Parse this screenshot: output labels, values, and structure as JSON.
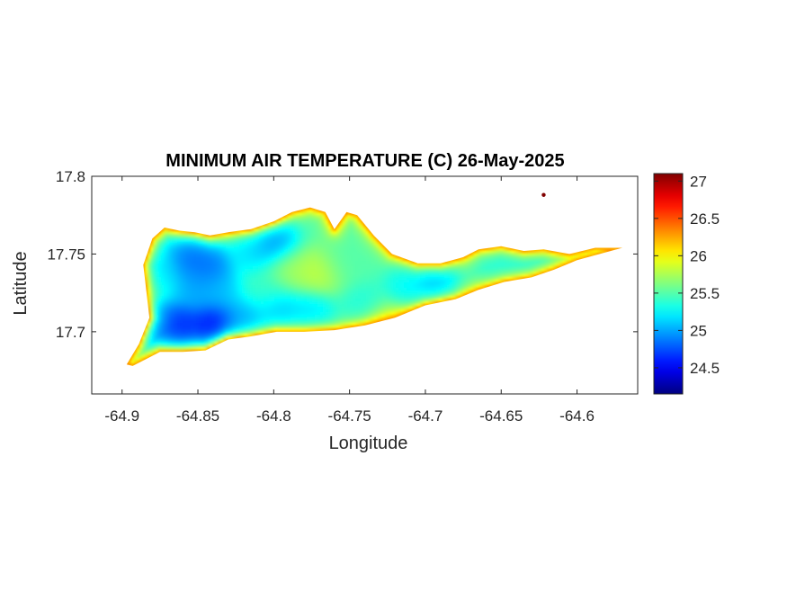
{
  "chart_data": {
    "type": "heatmap",
    "title": "MINIMUM AIR TEMPERATURE (C) 26-May-2025",
    "xlabel": "Longitude",
    "ylabel": "Latitude",
    "xlim": [
      -64.92,
      -64.56
    ],
    "ylim": [
      17.66,
      17.8
    ],
    "xticks": [
      -64.9,
      -64.85,
      -64.8,
      -64.75,
      -64.7,
      -64.65,
      -64.6
    ],
    "xtick_labels": [
      "-64.9",
      "-64.85",
      "-64.8",
      "-64.75",
      "-64.7",
      "-64.65",
      "-64.6"
    ],
    "yticks": [
      17.7,
      17.75,
      17.8
    ],
    "ytick_labels": [
      "17.7",
      "17.75",
      "17.8"
    ],
    "colorbar": {
      "colormap": "jet",
      "range": [
        24.15,
        27.1
      ],
      "ticks": [
        24.5,
        25,
        25.5,
        26,
        26.5,
        27
      ],
      "tick_labels": [
        "24.5",
        "25",
        "25.5",
        "26",
        "26.5",
        "27"
      ]
    },
    "outline": [
      [
        -64.897,
        17.679
      ],
      [
        -64.889,
        17.692
      ],
      [
        -64.882,
        17.709
      ],
      [
        -64.884,
        17.726
      ],
      [
        -64.886,
        17.743
      ],
      [
        -64.88,
        17.76
      ],
      [
        -64.872,
        17.767
      ],
      [
        -64.862,
        17.765
      ],
      [
        -64.852,
        17.764
      ],
      [
        -64.842,
        17.762
      ],
      [
        -64.83,
        17.764
      ],
      [
        -64.815,
        17.766
      ],
      [
        -64.8,
        17.771
      ],
      [
        -64.788,
        17.777
      ],
      [
        -64.776,
        17.78
      ],
      [
        -64.766,
        17.777
      ],
      [
        -64.76,
        17.766
      ],
      [
        -64.752,
        17.777
      ],
      [
        -64.745,
        17.775
      ],
      [
        -64.734,
        17.762
      ],
      [
        -64.722,
        17.75
      ],
      [
        -64.705,
        17.744
      ],
      [
        -64.69,
        17.744
      ],
      [
        -64.675,
        17.748
      ],
      [
        -64.665,
        17.753
      ],
      [
        -64.65,
        17.755
      ],
      [
        -64.635,
        17.752
      ],
      [
        -64.622,
        17.753
      ],
      [
        -64.605,
        17.75
      ],
      [
        -64.588,
        17.754
      ],
      [
        -64.57,
        17.754
      ],
      [
        -64.585,
        17.75
      ],
      [
        -64.6,
        17.746
      ],
      [
        -64.615,
        17.74
      ],
      [
        -64.63,
        17.735
      ],
      [
        -64.648,
        17.732
      ],
      [
        -64.665,
        17.727
      ],
      [
        -64.68,
        17.721
      ],
      [
        -64.7,
        17.717
      ],
      [
        -64.72,
        17.709
      ],
      [
        -64.74,
        17.704
      ],
      [
        -64.76,
        17.701
      ],
      [
        -64.78,
        17.7
      ],
      [
        -64.798,
        17.7
      ],
      [
        -64.815,
        17.697
      ],
      [
        -64.83,
        17.695
      ],
      [
        -64.845,
        17.688
      ],
      [
        -64.86,
        17.687
      ],
      [
        -64.875,
        17.687
      ],
      [
        -64.883,
        17.683
      ],
      [
        -64.893,
        17.678
      ]
    ],
    "islet": {
      "lon": -64.622,
      "lat": 17.788,
      "value": 27.1
    },
    "background_value": 25.5,
    "edge_value": 26.4,
    "sample_points": [
      {
        "lon": -64.856,
        "lat": 17.748,
        "value": 24.7
      },
      {
        "lon": -64.842,
        "lat": 17.742,
        "value": 24.7
      },
      {
        "lon": -64.852,
        "lat": 17.728,
        "value": 24.9
      },
      {
        "lon": -64.836,
        "lat": 17.726,
        "value": 25.0
      },
      {
        "lon": -64.876,
        "lat": 17.74,
        "value": 25.1
      },
      {
        "lon": -64.862,
        "lat": 17.704,
        "value": 24.4
      },
      {
        "lon": -64.84,
        "lat": 17.705,
        "value": 24.3
      },
      {
        "lon": -64.878,
        "lat": 17.705,
        "value": 24.8
      },
      {
        "lon": -64.82,
        "lat": 17.707,
        "value": 24.9
      },
      {
        "lon": -64.8,
        "lat": 17.757,
        "value": 24.8
      },
      {
        "lon": -64.815,
        "lat": 17.752,
        "value": 25.1
      },
      {
        "lon": -64.796,
        "lat": 17.713,
        "value": 25.0
      },
      {
        "lon": -64.775,
        "lat": 17.711,
        "value": 25.1
      },
      {
        "lon": -64.74,
        "lat": 17.715,
        "value": 25.3
      },
      {
        "lon": -64.712,
        "lat": 17.728,
        "value": 25.2
      },
      {
        "lon": -64.695,
        "lat": 17.73,
        "value": 25.0
      },
      {
        "lon": -64.65,
        "lat": 17.745,
        "value": 25.3
      },
      {
        "lon": -64.632,
        "lat": 17.746,
        "value": 25.3
      },
      {
        "lon": -64.77,
        "lat": 17.738,
        "value": 25.9
      },
      {
        "lon": -64.79,
        "lat": 17.74,
        "value": 25.8
      },
      {
        "lon": -64.755,
        "lat": 17.745,
        "value": 25.5
      },
      {
        "lon": -64.805,
        "lat": 17.728,
        "value": 25.4
      },
      {
        "lon": -64.725,
        "lat": 17.705,
        "value": 25.9
      }
    ]
  }
}
